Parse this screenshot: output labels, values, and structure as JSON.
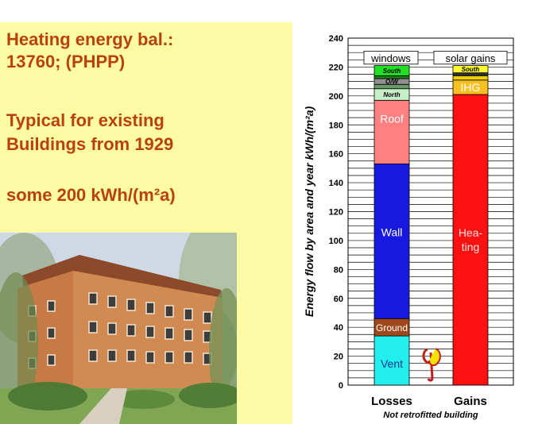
{
  "left": {
    "heading1_line1": "Heating energy bal.:",
    "heading1_line2": "13760; (PHPP)",
    "heading2_line1": "Typical for existing",
    "heading2_line2": "Buildings from 1929",
    "heading3": "some 200 kWh/(m²a)"
  },
  "chart_data": {
    "type": "bar",
    "stacked": true,
    "ylabel": "Energy flow by area and year  kWh/(m²a)",
    "ylim": [
      0,
      240
    ],
    "yticks": [
      0,
      20,
      40,
      60,
      80,
      100,
      120,
      140,
      160,
      180,
      200,
      220,
      240
    ],
    "grid": true,
    "categories": [
      "Losses",
      "Gains"
    ],
    "xcaption": "Not retrofitted building",
    "group_labels": [
      "windows",
      "solar gains"
    ],
    "bars": [
      {
        "category": "Losses",
        "segments": [
          {
            "label": "Vent",
            "value": 34,
            "color": "#22eeee",
            "text_color": "#1a3a8a"
          },
          {
            "label": "Ground",
            "value": 12,
            "color": "#a0481a",
            "text_color": "#ffffff"
          },
          {
            "label": "Wall",
            "value": 107,
            "color": "#1818e0",
            "text_color": "#ffffff"
          },
          {
            "label": "Roof",
            "value": 44,
            "color": "#ff8080",
            "text_color": "#ffffff"
          },
          {
            "label": "North",
            "value": 8,
            "color": "#c8f0c8",
            "text_color": "#000000"
          },
          {
            "label": "",
            "value": 3,
            "color": "#6a9a6a",
            "text_color": "#000000"
          },
          {
            "label": "O/W",
            "value": 4,
            "color": "#909090",
            "text_color": "#000000"
          },
          {
            "label": "",
            "value": 2,
            "color": "#208020",
            "text_color": "#000000"
          },
          {
            "label": "South",
            "value": 7,
            "color": "#22e022",
            "text_color": "#000000"
          }
        ]
      },
      {
        "category": "Gains",
        "segments": [
          {
            "label": "Hea-",
            "label2": "ting",
            "value": 201,
            "color": "#ff1010",
            "text_color": "#ffe0e0"
          },
          {
            "label": "IHG",
            "value": 10,
            "color": "#f8c020",
            "text_color": "#ffffff"
          },
          {
            "label": "",
            "value": 3,
            "color": "#f0d000",
            "text_color": "#000000"
          },
          {
            "label": "",
            "value": 2,
            "color": "#303030",
            "text_color": "#000000"
          },
          {
            "label": "South",
            "value": 5,
            "color": "#ffff30",
            "text_color": "#000000"
          }
        ]
      }
    ]
  }
}
